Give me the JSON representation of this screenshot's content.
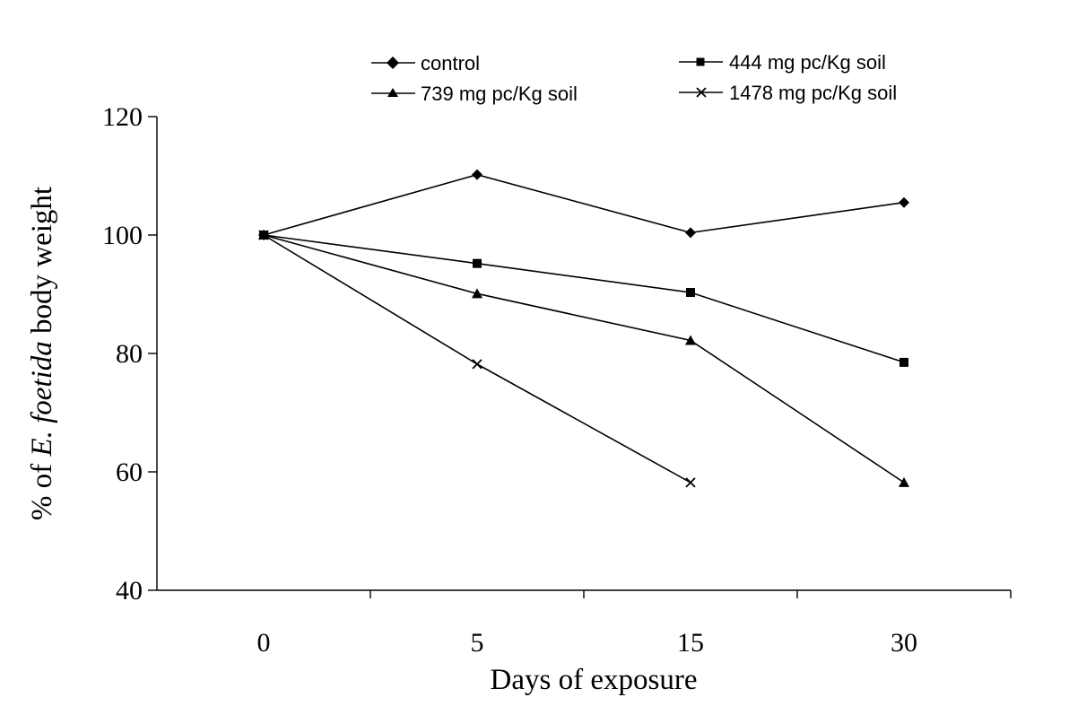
{
  "chart_data": {
    "type": "line",
    "categories": [
      "0",
      "5",
      "15",
      "30"
    ],
    "ylim": [
      40,
      120
    ],
    "yticks": [
      40,
      60,
      80,
      100,
      120
    ],
    "ylabel_parts": [
      "% of ",
      "E. foetida",
      " body weight"
    ],
    "xlabel": "Days of exposure",
    "grid": false,
    "legend_position": "top",
    "series": [
      {
        "name": "control",
        "marker": "diamond",
        "values": [
          100,
          110.2,
          100.4,
          105.5
        ]
      },
      {
        "name": "444 mg pc/Kg soil",
        "marker": "square",
        "values": [
          100,
          95.2,
          90.3,
          78.5
        ]
      },
      {
        "name": "739 mg pc/Kg soil",
        "marker": "triangle",
        "values": [
          100,
          90.1,
          82.2,
          58.2
        ]
      },
      {
        "name": "1478 mg pc/Kg soil",
        "marker": "x",
        "values": [
          100,
          78.2,
          58.2,
          null
        ]
      }
    ]
  }
}
